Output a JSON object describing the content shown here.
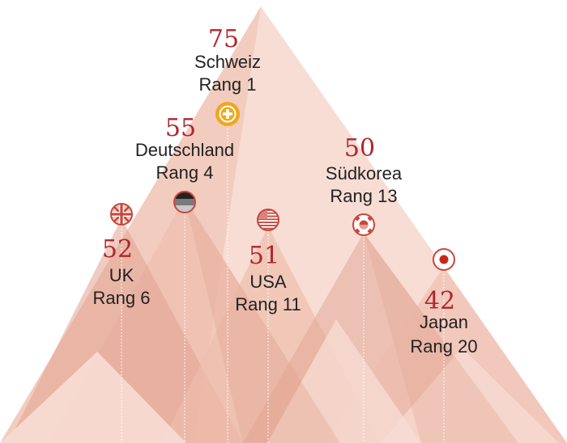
{
  "chart_data": {
    "type": "bar",
    "categories": [
      "Schweiz",
      "Deutschland",
      "UK",
      "USA",
      "Südkorea",
      "Japan"
    ],
    "values": [
      75,
      55,
      52,
      51,
      50,
      42
    ],
    "ranks": [
      "Rang 1",
      "Rang 4",
      "Rang 6",
      "Rang 11",
      "Rang 13",
      "Rang 20"
    ],
    "scores": [
      "75",
      "55",
      "52",
      "51",
      "50",
      "42"
    ],
    "flags": [
      "switzerland-flag-icon",
      "germany-flag-icon",
      "uk-flag-icon",
      "usa-flag-icon",
      "south-korea-flag-icon",
      "japan-flag-icon"
    ],
    "colors": {
      "score": "#b0272d",
      "label": "#222222",
      "peak_light": "#f7ddd4",
      "peak_mid": "#eebdad",
      "peak_dark": "#e2a390",
      "guide": "#d9a08f"
    }
  }
}
